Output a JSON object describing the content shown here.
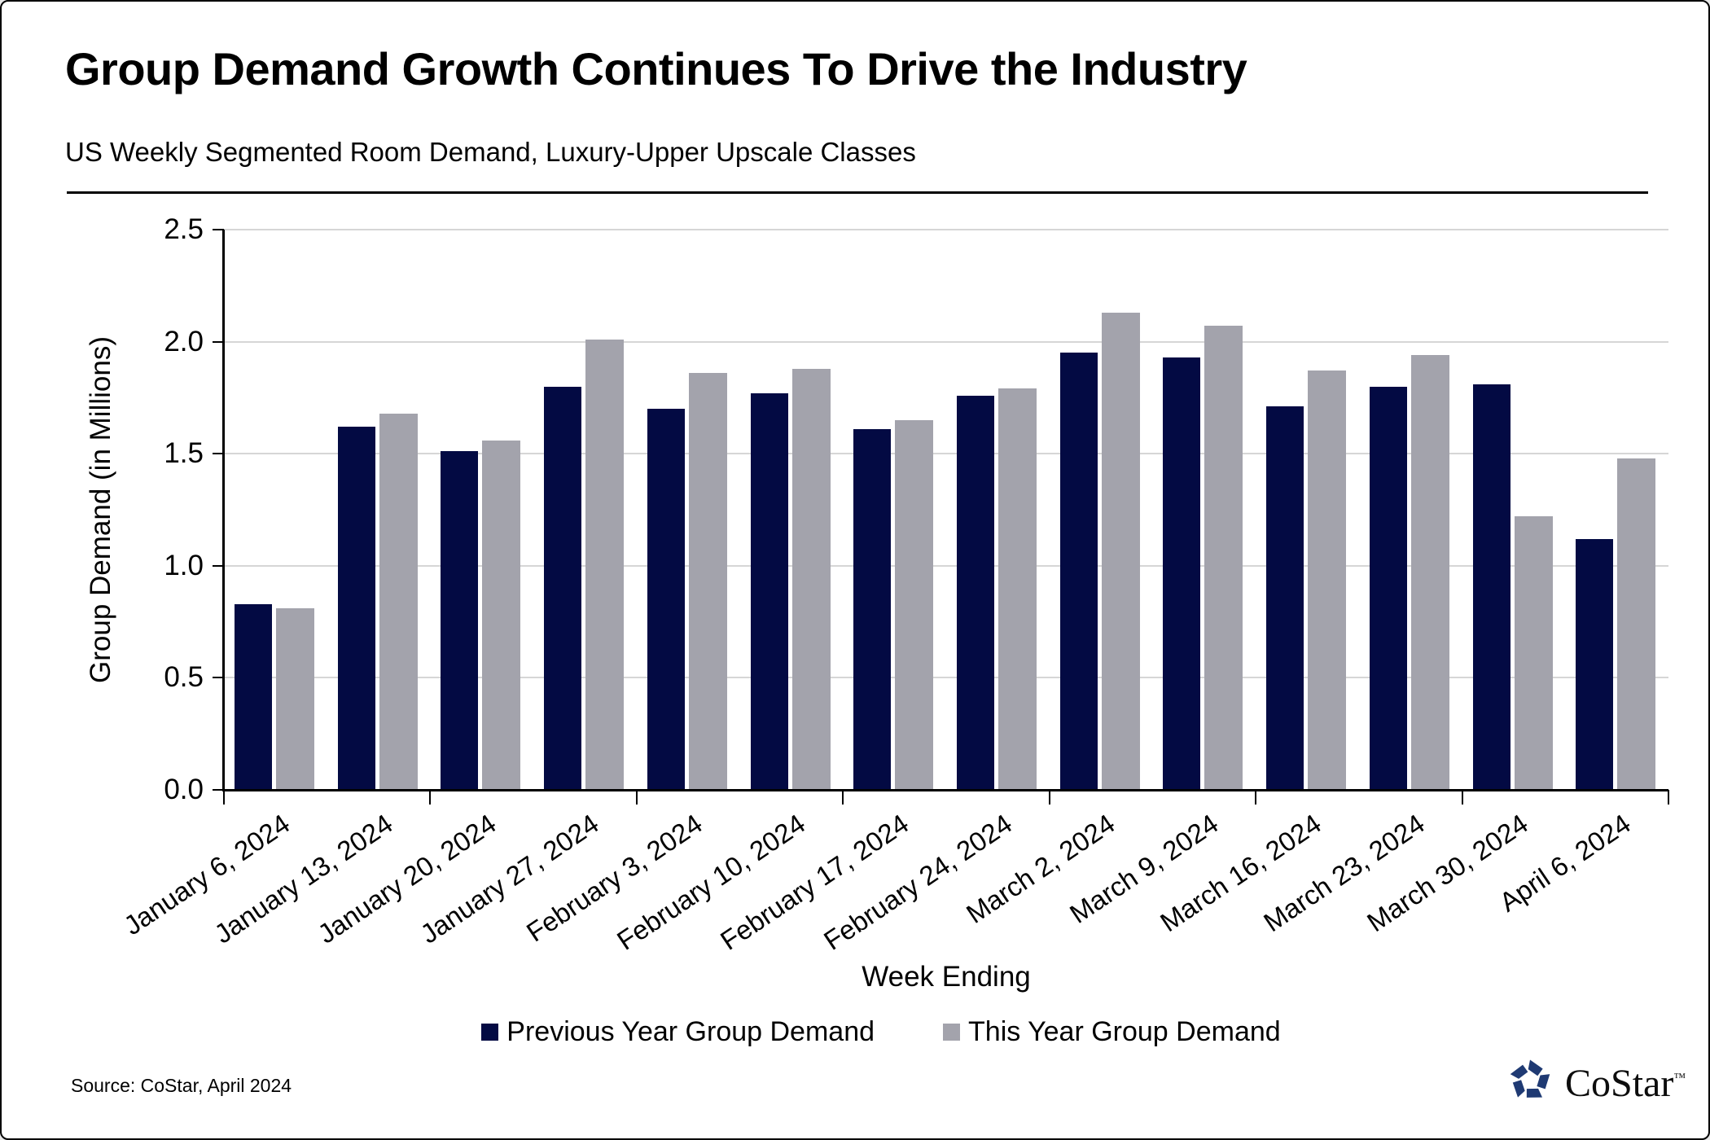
{
  "header": {
    "title": "Group Demand Growth Continues To Drive the Industry",
    "subtitle": "US Weekly Segmented Room Demand, Luxury-Upper Upscale Classes"
  },
  "chart_data": {
    "type": "bar",
    "categories": [
      "January 6, 2024",
      "January 13, 2024",
      "January 20, 2024",
      "January 27, 2024",
      "February 3, 2024",
      "February 10, 2024",
      "February 17, 2024",
      "February 24, 2024",
      "March 2, 2024",
      "March 9, 2024",
      "March 16, 2024",
      "March 23, 2024",
      "March 30, 2024",
      "April 6, 2024"
    ],
    "series": [
      {
        "name": "Previous Year Group Demand",
        "color": "#030a43",
        "values": [
          0.83,
          1.62,
          1.51,
          1.8,
          1.7,
          1.77,
          1.61,
          1.76,
          1.95,
          1.93,
          1.71,
          1.8,
          1.81,
          1.12
        ]
      },
      {
        "name": "This Year Group Demand",
        "color": "#a3a3ac",
        "values": [
          0.81,
          1.68,
          1.56,
          2.01,
          1.86,
          1.88,
          1.65,
          1.79,
          2.13,
          2.07,
          1.87,
          1.94,
          1.22,
          1.48
        ]
      }
    ],
    "xlabel": "Week Ending",
    "ylabel": "Group Demand (in Millions)",
    "ylim": [
      0,
      2.5
    ],
    "ytick_step": 0.5,
    "ytick_labels": [
      "0.0",
      "0.5",
      "1.0",
      "1.5",
      "2.0",
      "2.5"
    ],
    "grid": "horizontal-only",
    "gridline_color": "#d6d6d6",
    "legend_position": "bottom"
  },
  "footer": {
    "source": "Source: CoStar, April 2024",
    "logo_text": "CoStar",
    "logo_tm": "™",
    "logo_color": "#1f3a73"
  }
}
